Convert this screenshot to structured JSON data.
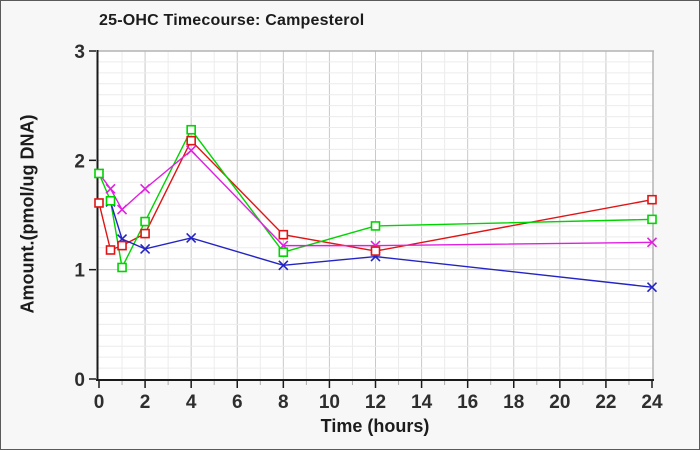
{
  "window": {
    "title": "25-OHC Timecourse: Campesterol"
  },
  "chart_data": {
    "type": "line",
    "title": "25-OHC Timecourse: Campesterol",
    "xlabel": "Time (hours)",
    "ylabel": "Amount.(pmol/ug DNA)",
    "xlim": [
      0,
      24
    ],
    "ylim": [
      0,
      3
    ],
    "x_major_ticks": [
      0,
      2,
      4,
      6,
      8,
      10,
      12,
      14,
      16,
      18,
      20,
      22,
      24
    ],
    "y_major_ticks": [
      0,
      1,
      2,
      3
    ],
    "x_minor_step": 1,
    "y_minor_step": 0.1,
    "grid": true,
    "legend": "none",
    "x": [
      0,
      0.5,
      1,
      2,
      4,
      8,
      12,
      24
    ],
    "series": [
      {
        "name": "red-squares",
        "color": "#e01414",
        "marker": "square",
        "values": [
          1.61,
          1.18,
          1.22,
          1.33,
          2.18,
          1.32,
          1.17,
          1.64
        ]
      },
      {
        "name": "green-squares",
        "color": "#00d400",
        "marker": "square",
        "values": [
          1.88,
          1.63,
          1.02,
          1.44,
          2.28,
          1.16,
          1.4,
          1.46
        ]
      },
      {
        "name": "blue-crosses",
        "color": "#2424c4",
        "marker": "x",
        "values": [
          null,
          1.62,
          1.28,
          1.19,
          1.29,
          1.04,
          1.12,
          0.84
        ]
      },
      {
        "name": "magenta-crosses",
        "color": "#e020e0",
        "marker": "x",
        "values": [
          1.88,
          1.74,
          1.55,
          1.74,
          2.09,
          1.22,
          1.22,
          1.25
        ]
      }
    ],
    "styles": {
      "plot_bg": "#ffffff",
      "minor_grid": "#ececec",
      "major_grid": "#c9c9c9",
      "frame": "#b4b4b4",
      "axis": "#1a1a1a",
      "tick_text": "#2e2e2e"
    }
  }
}
